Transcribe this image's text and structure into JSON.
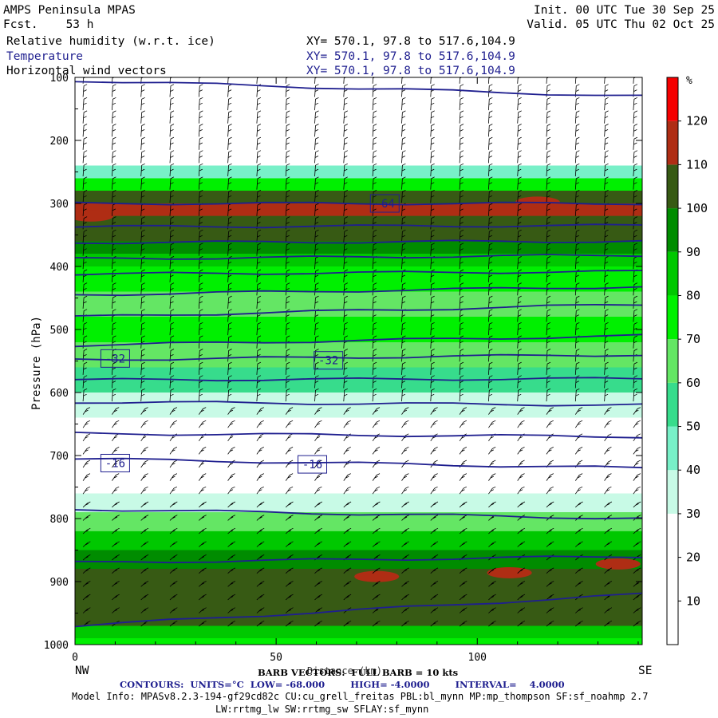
{
  "header": {
    "model": "AMPS Peninsula MPAS",
    "fcst": "Fcst.    53 h",
    "init": "Init. 00 UTC Tue 30 Sep 25",
    "valid": "Valid. 05 UTC Thu 02 Oct 25",
    "fields": [
      {
        "name": "Relative humidity (w.r.t. ice)",
        "xy": "XY= 570.1, 97.8 to 517.6,104.9",
        "color": "#000000"
      },
      {
        "name": "Temperature",
        "xy": "XY= 570.1, 97.8 to 517.6,104.9",
        "color": "#1f1f8f"
      },
      {
        "name": "Horizontal wind vectors",
        "xy": "XY= 570.1, 97.8 to 517.6,104.9",
        "color": "#000000"
      }
    ]
  },
  "footer": {
    "barb": "BARB VECTORS:  FULL BARB = 10 kts",
    "xlabel": "Distance (km)",
    "contours": "CONTOURS:  UNITS=°C  LOW= -68.000        HIGH= -4.0000        INTERVAL=    4.0000",
    "model_info_1": "Model Info: MPASv8.2.3-194-gf29cd82c CU:cu_grell_freitas PBL:bl_mynn MP:mp_thompson SF:sf_noahmp 2.7",
    "model_info_2": "LW:rrtmg_lw SW:rrtmg_sw SFLAY:sf_mynn",
    "left_end": "NW",
    "right_end": "SE"
  },
  "chart_data": {
    "type": "heatmap",
    "ylabel": "Pressure (hPa)",
    "xlabel": "Distance (km)",
    "xlim": [
      0,
      141
    ],
    "ylim": [
      100,
      1000
    ],
    "x_ticks": [
      "0",
      "50",
      "100"
    ],
    "x_tick_values": [
      0,
      50,
      100
    ],
    "y_ticks": [
      "100",
      "200",
      "300",
      "400",
      "500",
      "600",
      "700",
      "800",
      "900",
      "1000"
    ],
    "y_tick_values": [
      100,
      200,
      300,
      400,
      500,
      600,
      700,
      800,
      900,
      1000
    ],
    "colorbar": {
      "unit": "%",
      "levels": [
        0,
        10,
        20,
        30,
        40,
        50,
        60,
        70,
        80,
        90,
        100,
        110,
        120,
        130
      ],
      "labels": [
        "10",
        "20",
        "30",
        "40",
        "50",
        "60",
        "70",
        "80",
        "90",
        "100",
        "110",
        "120"
      ],
      "colors": [
        "#ffffff",
        "#ffffff",
        "#ffffff",
        "#c8fae6",
        "#78f0c8",
        "#37dc8c",
        "#64e664",
        "#00f000",
        "#00c800",
        "#008c00",
        "#375a14",
        "#af2d14",
        "#f50000"
      ]
    },
    "rh_profile": {
      "pressure": [
        100,
        200,
        240,
        260,
        280,
        300,
        320,
        340,
        360,
        380,
        400,
        440,
        480,
        520,
        560,
        600,
        640,
        680,
        720,
        760,
        790,
        820,
        850,
        880,
        910,
        940,
        970,
        990
      ],
      "rh": [
        5,
        5,
        40,
        75,
        100,
        112,
        108,
        100,
        92,
        82,
        75,
        60,
        70,
        68,
        50,
        35,
        15,
        15,
        15,
        30,
        65,
        80,
        95,
        100,
        105,
        100,
        80,
        70
      ]
    },
    "rh_spots": [
      {
        "x": 4,
        "p": 320,
        "rh": 118
      },
      {
        "x": 115,
        "p": 298,
        "rh": 118
      },
      {
        "x": 75,
        "p": 892,
        "rh": 118
      },
      {
        "x": 108,
        "p": 886,
        "rh": 118
      },
      {
        "x": 135,
        "p": 872,
        "rh": 118
      }
    ],
    "temperature_contours": {
      "units": "°C",
      "low": -68,
      "high": -4,
      "interval": 4,
      "levels": [
        {
          "value": -68,
          "p_left": 105,
          "p_right": 130
        },
        {
          "value": -64,
          "p_left": 300,
          "p_right": 300
        },
        {
          "value": -60,
          "p_left": 337,
          "p_right": 335
        },
        {
          "value": -56,
          "p_left": 362,
          "p_right": 360
        },
        {
          "value": -52,
          "p_left": 388,
          "p_right": 382
        },
        {
          "value": -48,
          "p_left": 412,
          "p_right": 408
        },
        {
          "value": -44,
          "p_left": 445,
          "p_right": 432
        },
        {
          "value": -40,
          "p_left": 480,
          "p_right": 460
        },
        {
          "value": -36,
          "p_left": 525,
          "p_right": 510
        },
        {
          "value": -32,
          "p_left": 548,
          "p_right": 540
        },
        {
          "value": -28,
          "p_left": 580,
          "p_right": 578
        },
        {
          "value": -24,
          "p_left": 615,
          "p_right": 620
        },
        {
          "value": -20,
          "p_left": 665,
          "p_right": 670
        },
        {
          "value": -16,
          "p_left": 705,
          "p_right": 720
        },
        {
          "value": -12,
          "p_left": 785,
          "p_right": 800
        },
        {
          "value": -8,
          "p_left": 870,
          "p_right": 860
        },
        {
          "value": -4,
          "p_left": 970,
          "p_right": 920
        }
      ],
      "labels": [
        {
          "text": "-64",
          "x": 77,
          "p": 300
        },
        {
          "text": "-32",
          "x": 10,
          "p": 546
        },
        {
          "text": "-32",
          "x": 63,
          "p": 549
        },
        {
          "text": "-16",
          "x": 10,
          "p": 712
        },
        {
          "text": "-16",
          "x": 59,
          "p": 714
        }
      ]
    }
  }
}
